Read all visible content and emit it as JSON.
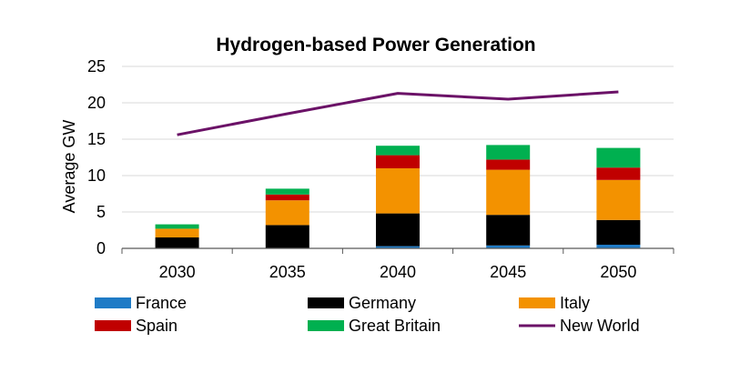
{
  "chart_data": {
    "type": "bar",
    "title": "Hydrogen-based Power Generation",
    "xlabel": "",
    "ylabel": "Average GW",
    "categories": [
      "2030",
      "2035",
      "2040",
      "2045",
      "2050"
    ],
    "ylim": [
      0,
      25
    ],
    "yticks": [
      0,
      5,
      10,
      15,
      20,
      25
    ],
    "grid": true,
    "stacked": true,
    "legend_position": "bottom",
    "series": [
      {
        "name": "France",
        "kind": "bar",
        "color": "#1f7bc6",
        "values": [
          0.0,
          0.0,
          0.3,
          0.4,
          0.5
        ]
      },
      {
        "name": "Germany",
        "kind": "bar",
        "color": "#000000",
        "values": [
          1.5,
          3.2,
          4.5,
          4.2,
          3.4
        ]
      },
      {
        "name": "Italy",
        "kind": "bar",
        "color": "#f39200",
        "values": [
          1.2,
          3.4,
          6.2,
          6.2,
          5.5
        ]
      },
      {
        "name": "Spain",
        "kind": "bar",
        "color": "#c00000",
        "values": [
          0.0,
          0.8,
          1.8,
          1.4,
          1.7
        ]
      },
      {
        "name": "Great Britain",
        "kind": "bar",
        "color": "#00b050",
        "values": [
          0.6,
          0.8,
          1.3,
          2.0,
          2.7
        ]
      },
      {
        "name": "New World",
        "kind": "line",
        "color": "#6b1267",
        "values": [
          15.6,
          18.5,
          21.3,
          20.5,
          21.5
        ]
      }
    ]
  }
}
